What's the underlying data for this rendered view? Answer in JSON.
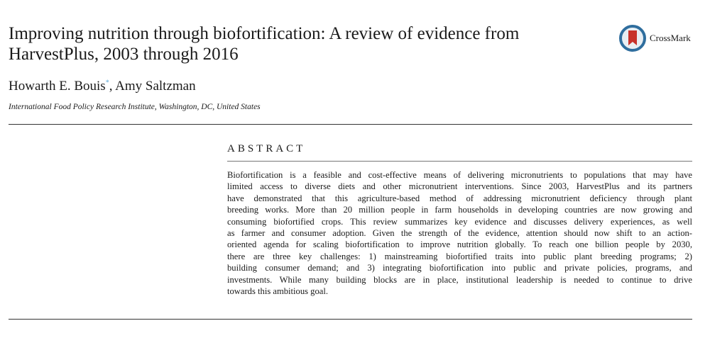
{
  "title_lines": [
    "Improving nutrition through biofortification: A review of evidence from",
    "HarvestPlus, 2003 through 2016"
  ],
  "authors": {
    "first": "Howarth E. Bouis",
    "mark": "*",
    "second": ", Amy Saltzman"
  },
  "affiliation": "International Food Policy Research Institute, Washington, DC, United States",
  "crossmark": {
    "label": "CrossMark",
    "colors": {
      "ring": "#2f6e9e",
      "ribbon": "#c8322a"
    }
  },
  "abstract": {
    "heading": "ABSTRACT",
    "lines": [
      "Biofortification is a feasible and cost-effective means of delivering micronutrients to populations that may have",
      "limited access to diverse diets and other micronutrient interventions. Since 2003, HarvestPlus and its partners",
      "have demonstrated that this agriculture-based method of addressing micronutrient deficiency through plant",
      "breeding works. More than 20 million people in farm households in developing countries are now growing and",
      "consuming biofortified crops. This review summarizes key evidence and discusses delivery experiences, as well",
      "as farmer and consumer adoption. Given the strength of the evidence, attention should now shift to an action-",
      "oriented agenda for scaling biofortification to improve nutrition globally. To reach one billion people by 2030,",
      "there are three key challenges: 1) mainstreaming biofortified traits into public plant breeding programs; 2)",
      "building consumer demand; and 3) integrating biofortification into public and private policies, programs, and",
      "investments. While many building blocks are in place, institutional leadership is needed to continue to drive",
      "towards this ambitious goal."
    ]
  }
}
